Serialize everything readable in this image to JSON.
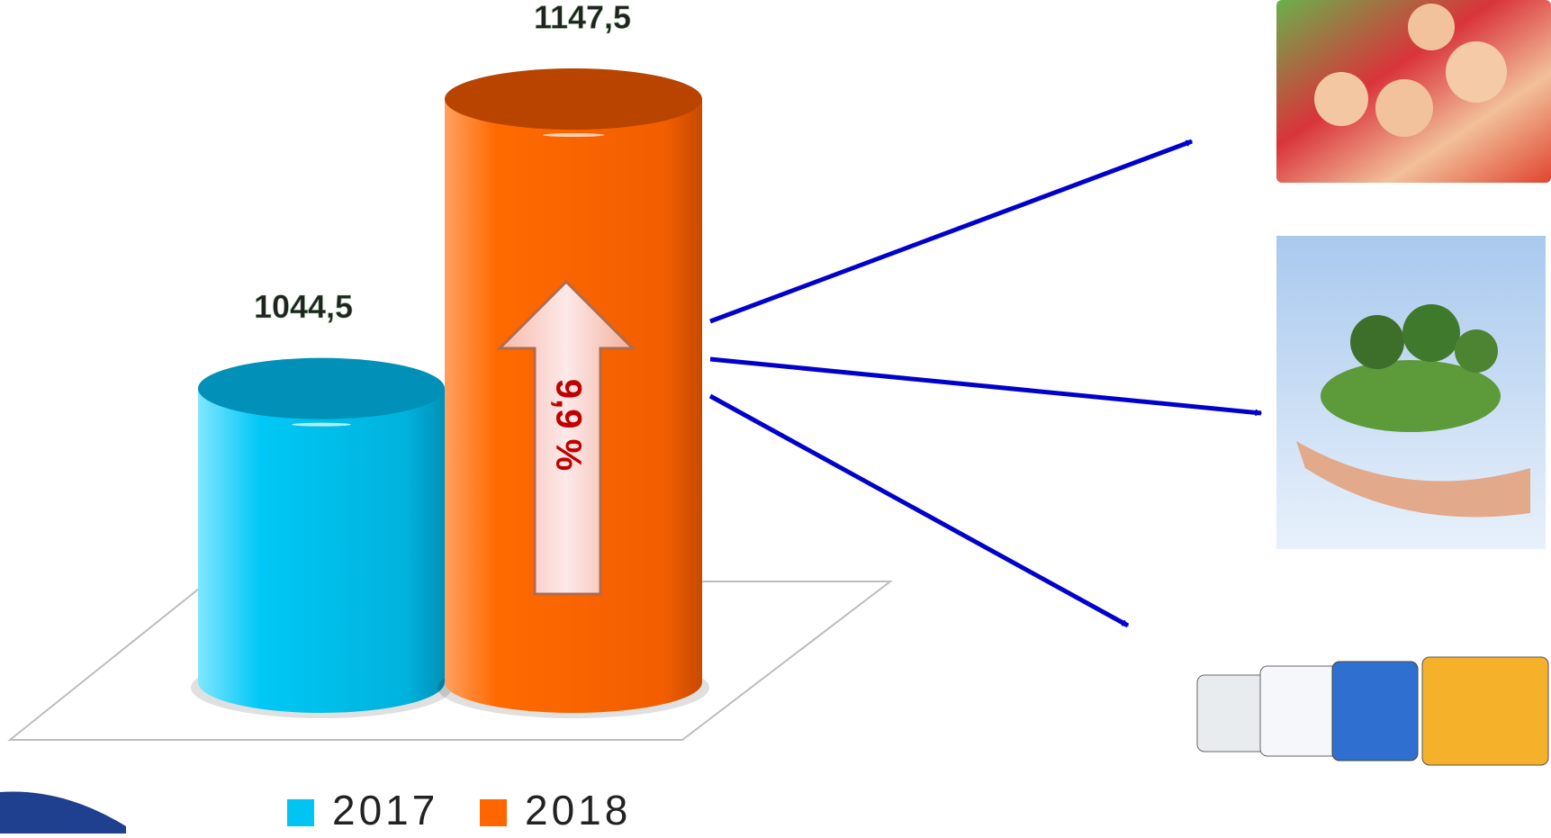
{
  "chart_data": {
    "type": "bar",
    "categories": [
      null
    ],
    "series": [
      {
        "name": "2017",
        "color": "#00c4f2",
        "values": [
          1044.5
        ],
        "value_labels": [
          "1044,5"
        ]
      },
      {
        "name": "2018",
        "color": "#ff6600",
        "values": [
          1147.5
        ],
        "value_labels": [
          "1147,5"
        ]
      }
    ],
    "ylim": [
      940,
      1160
    ],
    "annotation": "9,9 %"
  }
}
